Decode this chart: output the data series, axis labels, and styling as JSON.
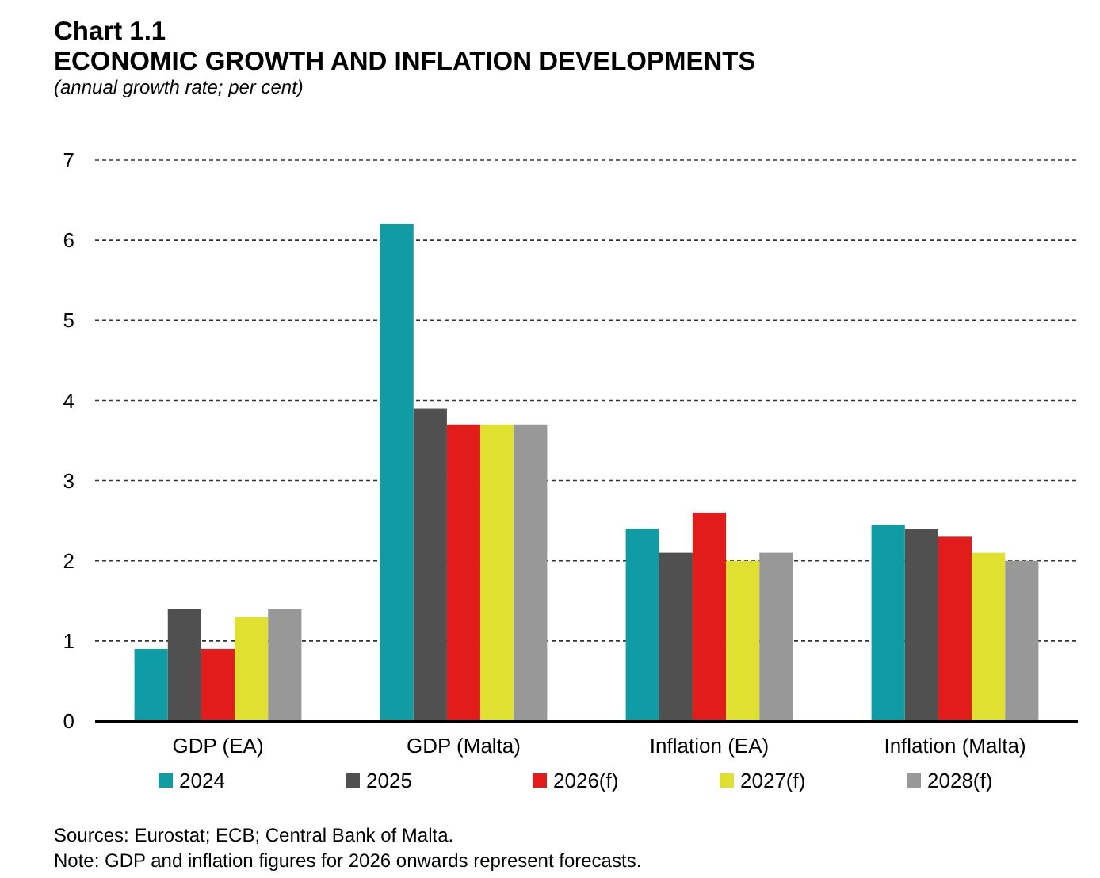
{
  "chart_data": {
    "type": "bar",
    "title": "Chart 1.1\nECONOMIC GROWTH AND INFLATION DEVELOPMENTS",
    "subtitle": "(annual growth rate; per cent)",
    "categories": [
      "GDP (EA)",
      "GDP (Malta)",
      "Inflation (EA)",
      "Inflation (Malta)"
    ],
    "series": [
      {
        "name": "2024",
        "color": "#109ca5",
        "values": [
          0.9,
          6.2,
          2.4,
          2.45
        ]
      },
      {
        "name": "2025",
        "color": "#505050",
        "values": [
          1.4,
          3.9,
          2.1,
          2.4
        ]
      },
      {
        "name": "2026(f)",
        "color": "#e21b1b",
        "values": [
          0.9,
          3.7,
          2.6,
          2.3
        ]
      },
      {
        "name": "2027(f)",
        "color": "#e0e030",
        "values": [
          1.3,
          3.7,
          2.0,
          2.1
        ]
      },
      {
        "name": "2028(f)",
        "color": "#989898",
        "values": [
          1.4,
          3.7,
          2.1,
          2.0
        ]
      }
    ],
    "ylim": [
      0,
      7
    ],
    "yticks": [
      0,
      1,
      2,
      3,
      4,
      5,
      6,
      7
    ],
    "grid": "y",
    "legend": "bottom",
    "annotations": [
      "Sources: Eurostat; ECB; Central Bank of Malta.",
      "Note: GDP and inflation figures for 2026 onwards represent forecasts."
    ]
  }
}
